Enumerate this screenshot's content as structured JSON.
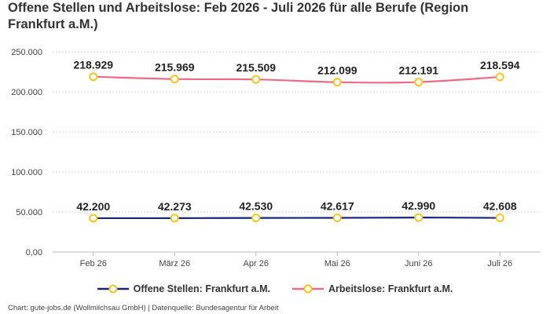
{
  "title": "Offene Stellen und Arbeitslose: Feb 2026 - Juli 2026 für alle Berufe (Region Frankfurt a.M.)",
  "footer": "Chart: gute-jobs.de (Wollmilchsau GmbH) | Datenquelle: Bundesagentur für Arbeit",
  "colors": {
    "offene_stellen": "#1a237e",
    "arbeitslose": "#ef6b84",
    "marker_stroke": "#f3c623",
    "grid": "#d9d9d9"
  },
  "chart_data": {
    "type": "line",
    "categories": [
      "Feb 26",
      "März 26",
      "Apr 26",
      "Mai 26",
      "Juni 26",
      "Juli 26"
    ],
    "y_ticks": [
      "0,00",
      "50.000",
      "100.000",
      "150.000",
      "200.000",
      "250.000"
    ],
    "ylim": [
      0,
      250000
    ],
    "grid": true,
    "legend_position": "bottom",
    "series": [
      {
        "name": "Offene Stellen: Frankfurt a.M.",
        "color": "#1a237e",
        "values": [
          42200,
          42273,
          42530,
          42617,
          42990,
          42608
        ],
        "labels": [
          "42.200",
          "42.273",
          "42.530",
          "42.617",
          "42.990",
          "42.608"
        ]
      },
      {
        "name": "Arbeitslose: Frankfurt a.M.",
        "color": "#ef6b84",
        "values": [
          218929,
          215969,
          215509,
          212099,
          212191,
          218594
        ],
        "labels": [
          "218.929",
          "215.969",
          "215.509",
          "212.099",
          "212.191",
          "218.594"
        ]
      }
    ]
  }
}
